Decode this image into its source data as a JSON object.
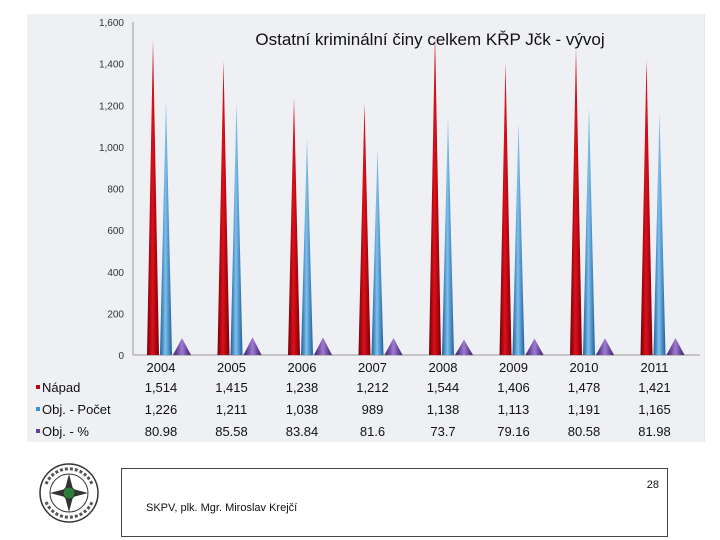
{
  "chart_data": {
    "type": "bar",
    "title": "Ostatní kriminální činy celkem KŘP Jčk - vývoj",
    "categories": [
      "2004",
      "2005",
      "2006",
      "2007",
      "2008",
      "2009",
      "2010",
      "2011"
    ],
    "ylim": [
      0,
      1600
    ],
    "yticks": [
      "0",
      "200",
      "400",
      "600",
      "800",
      "1,000",
      "1,200",
      "1,400",
      "1,600"
    ],
    "ytick_values": [
      0,
      200,
      400,
      600,
      800,
      1000,
      1200,
      1400,
      1600
    ],
    "grid": false,
    "legend": "table-left",
    "series": [
      {
        "name": "Nápad",
        "color": "#c0000c",
        "values": [
          1514,
          1415,
          1238,
          1212,
          1544,
          1406,
          1478,
          1421
        ],
        "labels": [
          "1,514",
          "1,415",
          "1,238",
          "1,212",
          "1,544",
          "1,406",
          "1,478",
          "1,421"
        ]
      },
      {
        "name": "Obj. - Počet",
        "color": "#3c8fd0",
        "values": [
          1226,
          1211,
          1038,
          989,
          1138,
          1113,
          1191,
          1165
        ],
        "labels": [
          "1,226",
          "1,211",
          "1,038",
          "989",
          "1,138",
          "1,113",
          "1,191",
          "1,165"
        ]
      },
      {
        "name": "Obj. - %",
        "color": "#6a3aa0",
        "values": [
          80.98,
          85.58,
          83.84,
          81.6,
          73.7,
          79.16,
          80.58,
          81.98
        ],
        "labels": [
          "80.98",
          "85.58",
          "83.84",
          "81.6",
          "73.7",
          "79.16",
          "80.58",
          "81.98"
        ]
      }
    ]
  },
  "footer": {
    "page_number": "28",
    "author": "SKPV, plk. Mgr. Miroslav Krejčí"
  },
  "logo": {
    "icon": "police-badge-icon",
    "text": "POLICIE ČESKÉ REPUBLIKY"
  }
}
